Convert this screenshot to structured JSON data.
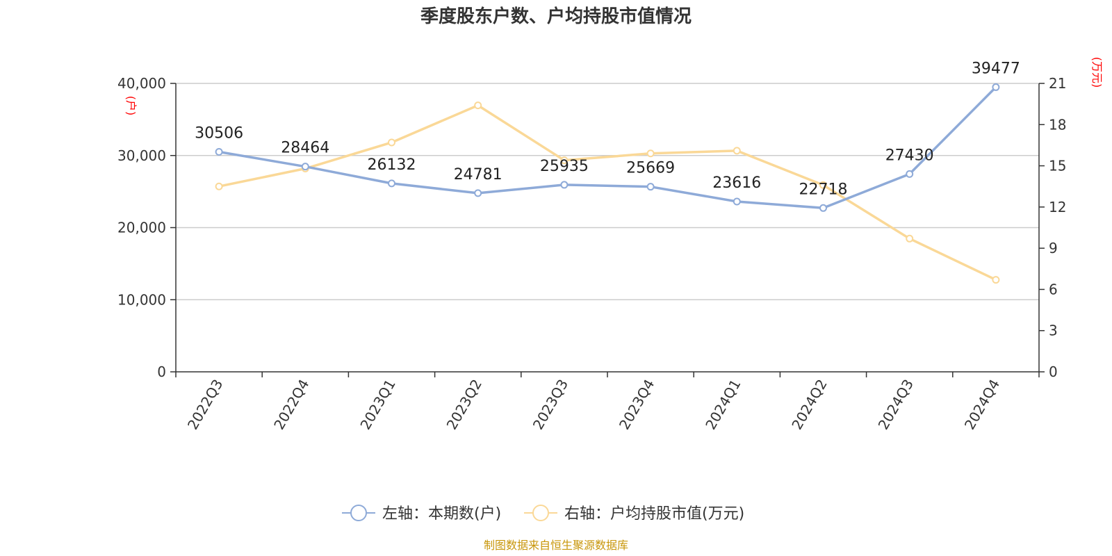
{
  "chart_data": {
    "type": "line",
    "title": "季度股东户数、户均持股市值情况",
    "categories": [
      "2022Q3",
      "2022Q4",
      "2023Q1",
      "2023Q2",
      "2023Q3",
      "2023Q4",
      "2024Q1",
      "2024Q2",
      "2024Q3",
      "2024Q4"
    ],
    "y_left": {
      "unit": "(户)",
      "range": [
        0,
        40000
      ],
      "ticks": [
        "0",
        "10,000",
        "20,000",
        "30,000",
        "40,000"
      ],
      "tick_values": [
        0,
        10000,
        20000,
        30000,
        40000
      ]
    },
    "y_right": {
      "unit": "(万元)",
      "range": [
        0,
        21
      ],
      "ticks": [
        "0",
        "3",
        "6",
        "9",
        "12",
        "15",
        "18",
        "21"
      ],
      "tick_values": [
        0,
        3,
        6,
        9,
        12,
        15,
        18,
        21
      ]
    },
    "series": [
      {
        "name": "左轴：本期数(户)",
        "axis": "left",
        "color": "#8eaad8",
        "values": [
          30506,
          28464,
          26132,
          24781,
          25935,
          25669,
          23616,
          22718,
          27430,
          39477
        ],
        "labels": [
          "30506",
          "28464",
          "26132",
          "24781",
          "25935",
          "25669",
          "23616",
          "22718",
          "27430",
          "39477"
        ]
      },
      {
        "name": "右轴：户均持股市值(万元)",
        "axis": "right",
        "color": "#fad897",
        "values": [
          13.5,
          14.8,
          16.7,
          19.4,
          15.4,
          15.9,
          16.1,
          13.6,
          9.7,
          6.7
        ]
      }
    ],
    "grid": true,
    "legend_position": "bottom"
  },
  "source": "制图数据来自恒生聚源数据库"
}
